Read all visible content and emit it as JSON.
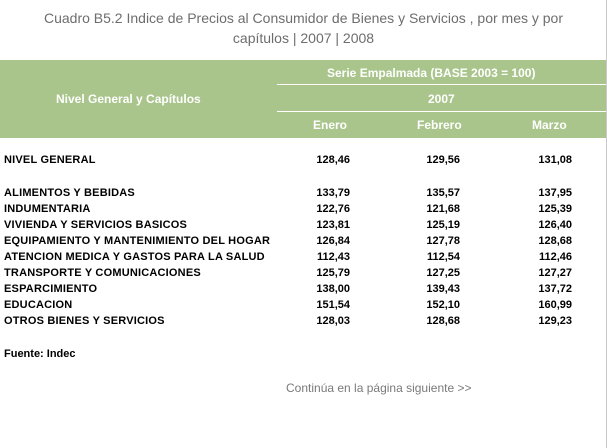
{
  "title": {
    "line1": "Cuadro B5.2 Indice de Precios al Consumidor de Bienes y Servicios , por mes y por",
    "line2": "capítulos | 2007 | 2008"
  },
  "header": {
    "row_label": "Nivel General y Capítulos",
    "series": "Serie Empalmada (BASE 2003 = 100)",
    "year": "2007",
    "months": [
      "Enero",
      "Febrero",
      "Marzo"
    ]
  },
  "colors": {
    "header_bg": "#a9c58b",
    "header_text": "#ffffff",
    "title_text": "#6d6d6d"
  },
  "rows": [
    {
      "label": "NIVEL GENERAL",
      "values": [
        "128,46",
        "129,56",
        "131,08"
      ]
    },
    {
      "label": "ALIMENTOS Y BEBIDAS",
      "values": [
        "133,79",
        "135,57",
        "137,95"
      ]
    },
    {
      "label": "INDUMENTARIA",
      "values": [
        "122,76",
        "121,68",
        "125,39"
      ]
    },
    {
      "label": "VIVIENDA Y SERVICIOS BASICOS",
      "values": [
        "123,81",
        "125,19",
        "126,40"
      ]
    },
    {
      "label": "EQUIPAMIENTO Y MANTENIMIENTO DEL HOGAR",
      "values": [
        "126,84",
        "127,78",
        "128,68"
      ]
    },
    {
      "label": "ATENCION MEDICA Y GASTOS PARA LA SALUD",
      "values": [
        "112,43",
        "112,54",
        "112,46"
      ]
    },
    {
      "label": "TRANSPORTE Y COMUNICACIONES",
      "values": [
        "125,79",
        "127,25",
        "127,27"
      ]
    },
    {
      "label": "ESPARCIMIENTO",
      "values": [
        "138,00",
        "139,43",
        "137,72"
      ]
    },
    {
      "label": "EDUCACION",
      "values": [
        "151,54",
        "152,10",
        "160,99"
      ]
    },
    {
      "label": "OTROS BIENES Y SERVICIOS",
      "values": [
        "128,03",
        "128,68",
        "129,23"
      ]
    }
  ],
  "source": "Fuente: Indec",
  "continue_link": "Continúa en la página siguiente >>"
}
